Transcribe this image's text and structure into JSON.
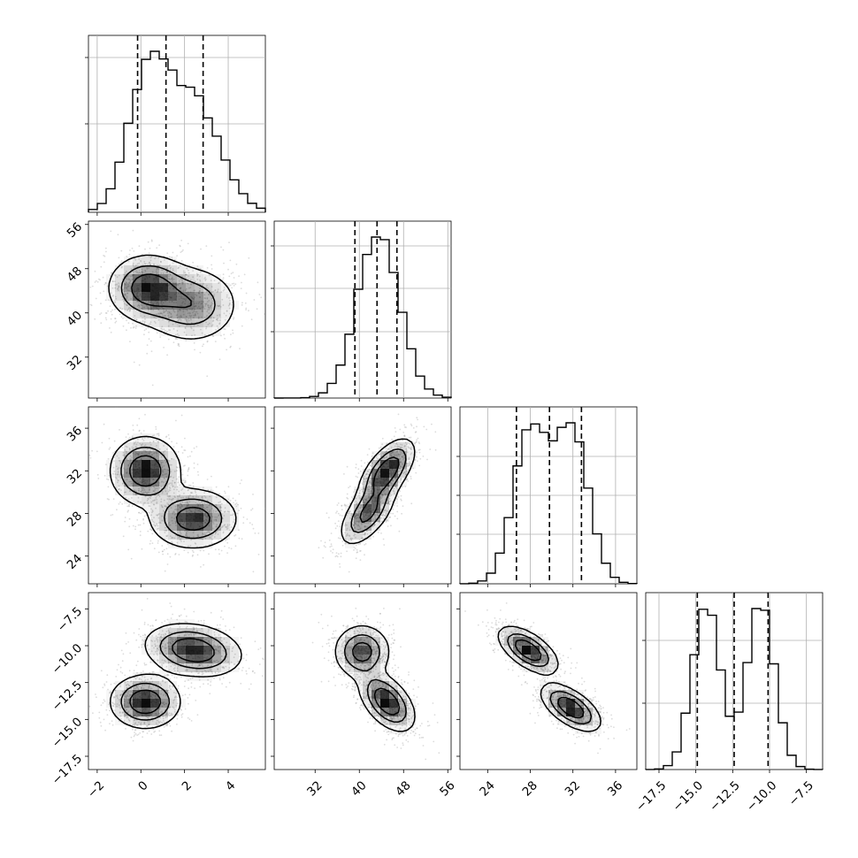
{
  "chart_data": {
    "type": "corner",
    "title": "",
    "grid": true,
    "colors": {
      "line": "#000000",
      "grid": "#b0b0b0",
      "density": "#000000",
      "points": "#9a9a9a"
    },
    "variables": [
      {
        "range": [
          -2.4,
          5.7
        ],
        "ticks": [
          -2,
          0,
          2,
          4
        ],
        "tick_labels": [
          "−2",
          "0",
          "2",
          "4"
        ],
        "quantiles": [
          -0.15,
          1.15,
          2.85
        ],
        "modes": [
          [
            0.3,
            0.9,
            1.0
          ],
          [
            2.4,
            1.2,
            0.85
          ]
        ]
      },
      {
        "range": [
          24.6,
          56.6
        ],
        "ticks": [
          32,
          40,
          48,
          56
        ],
        "tick_labels": [
          "32",
          "40",
          "48",
          "56"
        ],
        "quantiles": [
          39.2,
          43.2,
          46.8
        ],
        "modes": [
          [
            43.4,
            3.8,
            1.0
          ]
        ]
      },
      {
        "range": [
          21.4,
          38.0
        ],
        "ticks": [
          24,
          28,
          32,
          36
        ],
        "tick_labels": [
          "24",
          "28",
          "32",
          "36"
        ],
        "quantiles": [
          26.7,
          29.8,
          32.8
        ],
        "modes": [
          [
            28.0,
            1.6,
            1.0
          ],
          [
            31.9,
            1.6,
            1.0
          ]
        ]
      },
      {
        "range": [
          -18.4,
          -6.4
        ],
        "ticks": [
          -17.5,
          -15.0,
          -12.5,
          -10.0,
          -7.5
        ],
        "tick_labels": [
          "−17.5",
          "−15.0",
          "−12.5",
          "−10.0",
          "−7.5"
        ],
        "quantiles": [
          -14.9,
          -12.4,
          -10.1
        ],
        "modes": [
          [
            -14.3,
            0.95,
            1.0
          ],
          [
            -10.6,
            0.95,
            1.0
          ]
        ]
      }
    ],
    "histogram_y_ticks": [
      [
        0.5,
        0.875
      ],
      [
        0.375,
        0.62,
        0.86
      ],
      [
        0.28,
        0.5,
        0.72
      ],
      [
        0.375,
        0.73
      ]
    ],
    "pair_modes": [
      {
        "row": 1,
        "col": 0,
        "modes": [
          [
            0.3,
            44.5,
            0.9,
            3.0,
            0.0,
            1.0
          ],
          [
            2.3,
            41.5,
            1.1,
            3.5,
            0.0,
            0.7
          ]
        ]
      },
      {
        "row": 2,
        "col": 0,
        "modes": [
          [
            0.2,
            32.0,
            0.8,
            1.6,
            0.0,
            1.0
          ],
          [
            2.4,
            27.5,
            1.0,
            1.4,
            0.0,
            0.9
          ]
        ]
      },
      {
        "row": 2,
        "col": 1,
        "modes": [
          [
            45.0,
            32.0,
            2.5,
            1.5,
            0.6,
            1.0
          ],
          [
            41.5,
            28.0,
            2.5,
            1.5,
            0.6,
            0.8
          ]
        ]
      },
      {
        "row": 3,
        "col": 0,
        "modes": [
          [
            0.2,
            -13.8,
            0.8,
            0.9,
            0.0,
            1.0
          ],
          [
            2.4,
            -10.3,
            1.1,
            0.9,
            -0.2,
            1.0
          ]
        ]
      },
      {
        "row": 3,
        "col": 1,
        "modes": [
          [
            45.0,
            -13.8,
            2.5,
            1.0,
            -0.5,
            1.0
          ],
          [
            40.5,
            -10.4,
            2.5,
            0.9,
            0.0,
            0.85
          ]
        ]
      },
      {
        "row": 3,
        "col": 2,
        "modes": [
          [
            27.8,
            -10.3,
            1.4,
            0.8,
            -0.6,
            1.0
          ],
          [
            31.8,
            -14.2,
            1.4,
            0.8,
            -0.6,
            1.0
          ]
        ]
      }
    ]
  }
}
